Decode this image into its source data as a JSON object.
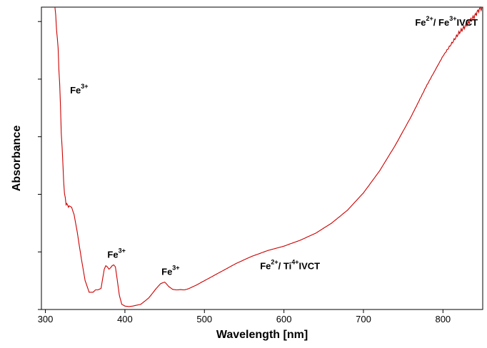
{
  "chart_data": {
    "type": "line",
    "title": "",
    "xlabel": "Wavelength [nm]",
    "ylabel": "Absorbance",
    "xlim": [
      295,
      850
    ],
    "ylim": [
      0,
      1.05
    ],
    "x_ticks": [
      300,
      400,
      500,
      600,
      700,
      800
    ],
    "y_tick_labels_shown": false,
    "grid": false,
    "series": [
      {
        "color": "#cc0000",
        "x": [
          312,
          314,
          316,
          318,
          320,
          322,
          324,
          326,
          328,
          330,
          333,
          336,
          340,
          345,
          350,
          355,
          360,
          363,
          366,
          370,
          374,
          376,
          378,
          380,
          382,
          384,
          386,
          388,
          390,
          393,
          396,
          400,
          405,
          410,
          420,
          430,
          440,
          445,
          450,
          452,
          455,
          460,
          465,
          470,
          475,
          480,
          490,
          500,
          520,
          540,
          560,
          580,
          600,
          620,
          640,
          660,
          680,
          700,
          720,
          740,
          760,
          780,
          800,
          820,
          830,
          840,
          845,
          850
        ],
        "y": [
          1.05,
          0.98,
          0.9,
          0.78,
          0.62,
          0.5,
          0.4,
          0.37,
          0.36,
          0.36,
          0.355,
          0.33,
          0.27,
          0.18,
          0.1,
          0.06,
          0.06,
          0.068,
          0.068,
          0.073,
          0.14,
          0.152,
          0.148,
          0.14,
          0.145,
          0.152,
          0.155,
          0.148,
          0.11,
          0.05,
          0.018,
          0.012,
          0.01,
          0.012,
          0.018,
          0.04,
          0.075,
          0.09,
          0.095,
          0.09,
          0.08,
          0.07,
          0.068,
          0.069,
          0.068,
          0.072,
          0.085,
          0.1,
          0.13,
          0.16,
          0.185,
          0.205,
          0.22,
          0.24,
          0.265,
          0.3,
          0.345,
          0.405,
          0.48,
          0.57,
          0.67,
          0.78,
          0.88,
          0.96,
          0.99,
          1.02,
          1.04,
          1.05
        ]
      }
    ],
    "annotations": [
      {
        "base": "Fe",
        "sup": "3+",
        "suffix": "",
        "x": 331,
        "y": 0.75
      },
      {
        "base": "Fe",
        "sup": "3+",
        "suffix": "",
        "x": 378,
        "y": 0.18
      },
      {
        "base": "Fe",
        "sup": "3+",
        "suffix": "",
        "x": 446,
        "y": 0.12
      },
      {
        "base": "Fe",
        "sup": "2+",
        "suffix": "/ Ti",
        "sup2": "4+",
        "suffix2": "IVCT",
        "x": 570,
        "y": 0.14
      },
      {
        "base": "Fe",
        "sup": "2+",
        "suffix": "/ Fe",
        "sup2": "3+",
        "suffix2": "IVCT",
        "x": 765,
        "y": 0.985
      }
    ]
  }
}
